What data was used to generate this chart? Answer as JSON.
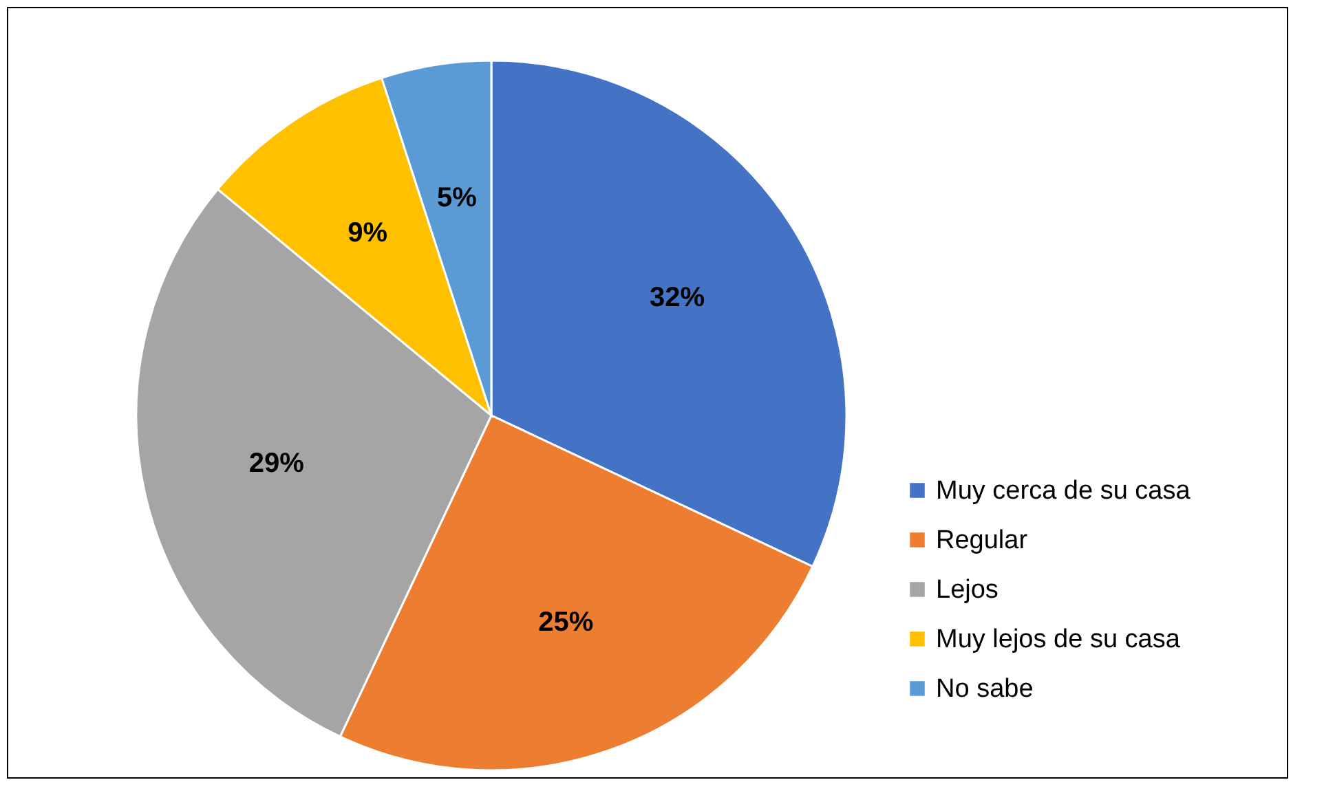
{
  "chart_data": {
    "type": "pie",
    "categories": [
      "Muy cerca de su casa",
      "Regular",
      "Lejos",
      "Muy lejos de su casa",
      "No sabe"
    ],
    "values": [
      32,
      25,
      29,
      9,
      5
    ],
    "value_labels": [
      "32%",
      "25%",
      "29%",
      "9%",
      "5%"
    ],
    "colors": [
      "#4472c4",
      "#ed7d31",
      "#a5a5a5",
      "#ffc000",
      "#5b9bd5"
    ],
    "legend": "bottom right"
  }
}
